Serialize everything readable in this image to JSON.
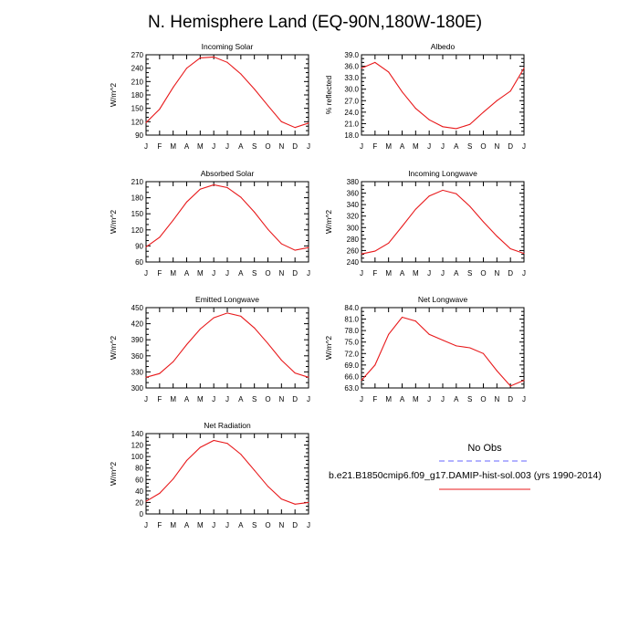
{
  "figure": {
    "title": "N. Hemisphere Land (EQ-90N,180W-180E)"
  },
  "colors": {
    "model_line": "#e8191b",
    "obs_line": "#6666ff",
    "frame": "#000000"
  },
  "chart_data": [
    {
      "type": "line",
      "title": "Incoming Solar",
      "xlabel": "",
      "ylabel": "W/m^2",
      "categories": [
        "J",
        "F",
        "M",
        "A",
        "M",
        "J",
        "J",
        "A",
        "S",
        "O",
        "N",
        "D",
        "J"
      ],
      "ylim": [
        90,
        270
      ],
      "yticks": [
        "90",
        "120",
        "150",
        "180",
        "210",
        "240",
        "270"
      ],
      "series": [
        {
          "values": [
            118,
            148,
            197,
            240,
            263,
            265,
            253,
            227,
            193,
            156,
            120,
            107,
            117
          ]
        }
      ]
    },
    {
      "type": "line",
      "title": "Albedo",
      "xlabel": "",
      "ylabel": "% reflected",
      "categories": [
        "J",
        "F",
        "M",
        "A",
        "M",
        "J",
        "J",
        "A",
        "S",
        "O",
        "N",
        "D",
        "J"
      ],
      "ylim": [
        18.0,
        39.0
      ],
      "yticks": [
        "18.0",
        "21.0",
        "24.0",
        "27.0",
        "30.0",
        "33.0",
        "36.0",
        "39.0"
      ],
      "series": [
        {
          "values": [
            35.5,
            37.0,
            34.5,
            29.3,
            25.0,
            22.0,
            20.2,
            19.7,
            20.8,
            24.0,
            27.0,
            29.5,
            35.5
          ]
        }
      ]
    },
    {
      "type": "line",
      "title": "Absorbed Solar",
      "xlabel": "",
      "ylabel": "W/m^2",
      "categories": [
        "J",
        "F",
        "M",
        "A",
        "M",
        "J",
        "J",
        "A",
        "S",
        "O",
        "N",
        "D",
        "J"
      ],
      "ylim": [
        60,
        210
      ],
      "yticks": [
        "60",
        "90",
        "120",
        "150",
        "180",
        "210"
      ],
      "series": [
        {
          "values": [
            88,
            106,
            138,
            172,
            196,
            204,
            199,
            181,
            153,
            121,
            94,
            82,
            87
          ]
        }
      ]
    },
    {
      "type": "line",
      "title": "Incoming Longwave",
      "xlabel": "",
      "ylabel": "W/m^2",
      "categories": [
        "J",
        "F",
        "M",
        "A",
        "M",
        "J",
        "J",
        "A",
        "S",
        "O",
        "N",
        "D",
        "J"
      ],
      "ylim": [
        240,
        380
      ],
      "yticks": [
        "240",
        "260",
        "280",
        "300",
        "320",
        "340",
        "360",
        "380"
      ],
      "series": [
        {
          "values": [
            254,
            259,
            273,
            302,
            332,
            355,
            365,
            359,
            337,
            310,
            285,
            263,
            255
          ]
        }
      ]
    },
    {
      "type": "line",
      "title": "Emitted Longwave",
      "xlabel": "",
      "ylabel": "W/m^2",
      "categories": [
        "J",
        "F",
        "M",
        "A",
        "M",
        "J",
        "J",
        "A",
        "S",
        "O",
        "N",
        "D",
        "J"
      ],
      "ylim": [
        300,
        450
      ],
      "yticks": [
        "300",
        "330",
        "360",
        "390",
        "420",
        "450"
      ],
      "series": [
        {
          "values": [
            320,
            327,
            349,
            381,
            410,
            431,
            440,
            434,
            412,
            383,
            352,
            328,
            320
          ]
        }
      ]
    },
    {
      "type": "line",
      "title": "Net Longwave",
      "xlabel": "",
      "ylabel": "W/m^2",
      "categories": [
        "J",
        "F",
        "M",
        "A",
        "M",
        "J",
        "J",
        "A",
        "S",
        "O",
        "N",
        "D",
        "J"
      ],
      "ylim": [
        63.0,
        84.0
      ],
      "yticks": [
        "63.0",
        "66.0",
        "69.0",
        "72.0",
        "75.0",
        "78.0",
        "81.0",
        "84.0"
      ],
      "series": [
        {
          "values": [
            65.0,
            69.0,
            77.0,
            81.5,
            80.5,
            77.0,
            75.5,
            74.0,
            73.5,
            72.0,
            67.5,
            63.5,
            65.0
          ]
        }
      ]
    },
    {
      "type": "line",
      "title": "Net Radiation",
      "xlabel": "",
      "ylabel": "W/m^2",
      "categories": [
        "J",
        "F",
        "M",
        "A",
        "M",
        "J",
        "J",
        "A",
        "S",
        "O",
        "N",
        "D",
        "J"
      ],
      "ylim": [
        0,
        140
      ],
      "yticks": [
        "0",
        "20",
        "40",
        "60",
        "80",
        "100",
        "120",
        "140"
      ],
      "series": [
        {
          "values": [
            22,
            36,
            61,
            93,
            116,
            128,
            123,
            104,
            76,
            48,
            26,
            17,
            20
          ]
        }
      ]
    }
  ],
  "legend": {
    "obs_label": "No Obs",
    "model_label": "b.e21.B1850cmip6.f09_g17.DAMIP-hist-sol.003 (yrs 1990-2014)"
  }
}
